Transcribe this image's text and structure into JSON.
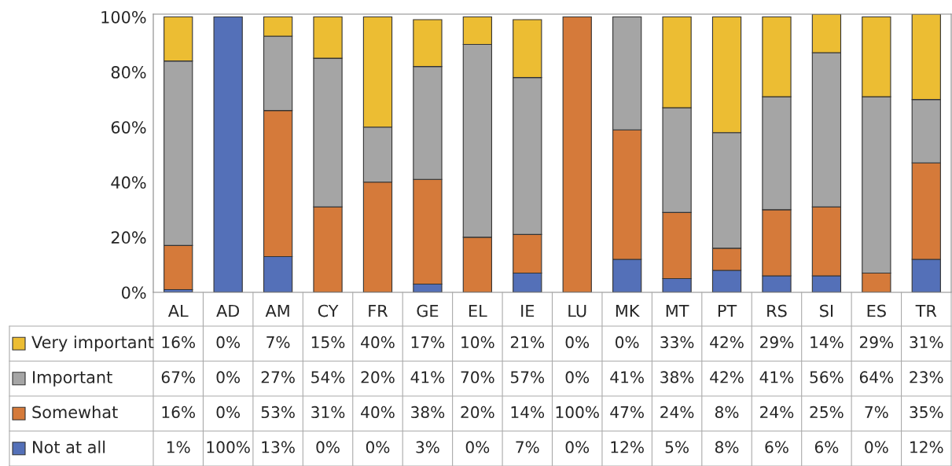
{
  "chart_data": {
    "type": "bar",
    "stacked": true,
    "legend": "left",
    "categories": [
      "AL",
      "AD",
      "AM",
      "CY",
      "FR",
      "GE",
      "EL",
      "IE",
      "LU",
      "MK",
      "MT",
      "PT",
      "RS",
      "SI",
      "ES",
      "TR"
    ],
    "series": [
      {
        "name": "Not at all",
        "color": "#5470b8",
        "values": [
          1,
          100,
          13,
          0,
          0,
          3,
          0,
          7,
          0,
          12,
          5,
          8,
          6,
          6,
          0,
          12
        ],
        "value_labels": [
          "1%",
          "100%",
          "13%",
          "0%",
          "0%",
          "3%",
          "0%",
          "7%",
          "0%",
          "12%",
          "5%",
          "8%",
          "6%",
          "6%",
          "0%",
          "12%"
        ]
      },
      {
        "name": "Somewhat",
        "color": "#d57a3a",
        "values": [
          16,
          0,
          53,
          31,
          40,
          38,
          20,
          14,
          100,
          47,
          24,
          8,
          24,
          25,
          7,
          35
        ],
        "value_labels": [
          "16%",
          "0%",
          "53%",
          "31%",
          "40%",
          "38%",
          "20%",
          "14%",
          "100%",
          "47%",
          "24%",
          "8%",
          "24%",
          "25%",
          "7%",
          "35%"
        ]
      },
      {
        "name": "Important",
        "color": "#a5a5a5",
        "values": [
          67,
          0,
          27,
          54,
          20,
          41,
          70,
          57,
          0,
          41,
          38,
          42,
          41,
          56,
          64,
          23
        ],
        "value_labels": [
          "67%",
          "0%",
          "27%",
          "54%",
          "20%",
          "41%",
          "70%",
          "57%",
          "0%",
          "41%",
          "38%",
          "42%",
          "41%",
          "56%",
          "64%",
          "23%"
        ]
      },
      {
        "name": "Very important",
        "color": "#ecbd33",
        "values": [
          16,
          0,
          7,
          15,
          40,
          17,
          10,
          21,
          0,
          0,
          33,
          42,
          29,
          14,
          29,
          31
        ],
        "value_labels": [
          "16%",
          "0%",
          "7%",
          "15%",
          "40%",
          "17%",
          "10%",
          "21%",
          "0%",
          "0%",
          "33%",
          "42%",
          "29%",
          "14%",
          "29%",
          "31%"
        ]
      }
    ],
    "ylim": [
      0,
      101
    ],
    "yticks": [
      {
        "value": 0,
        "label": "0%"
      },
      {
        "value": 20,
        "label": "20%"
      },
      {
        "value": 40,
        "label": "40%"
      },
      {
        "value": 60,
        "label": "60%"
      },
      {
        "value": 80,
        "label": "80%"
      },
      {
        "value": 100,
        "label": "100%"
      }
    ]
  }
}
